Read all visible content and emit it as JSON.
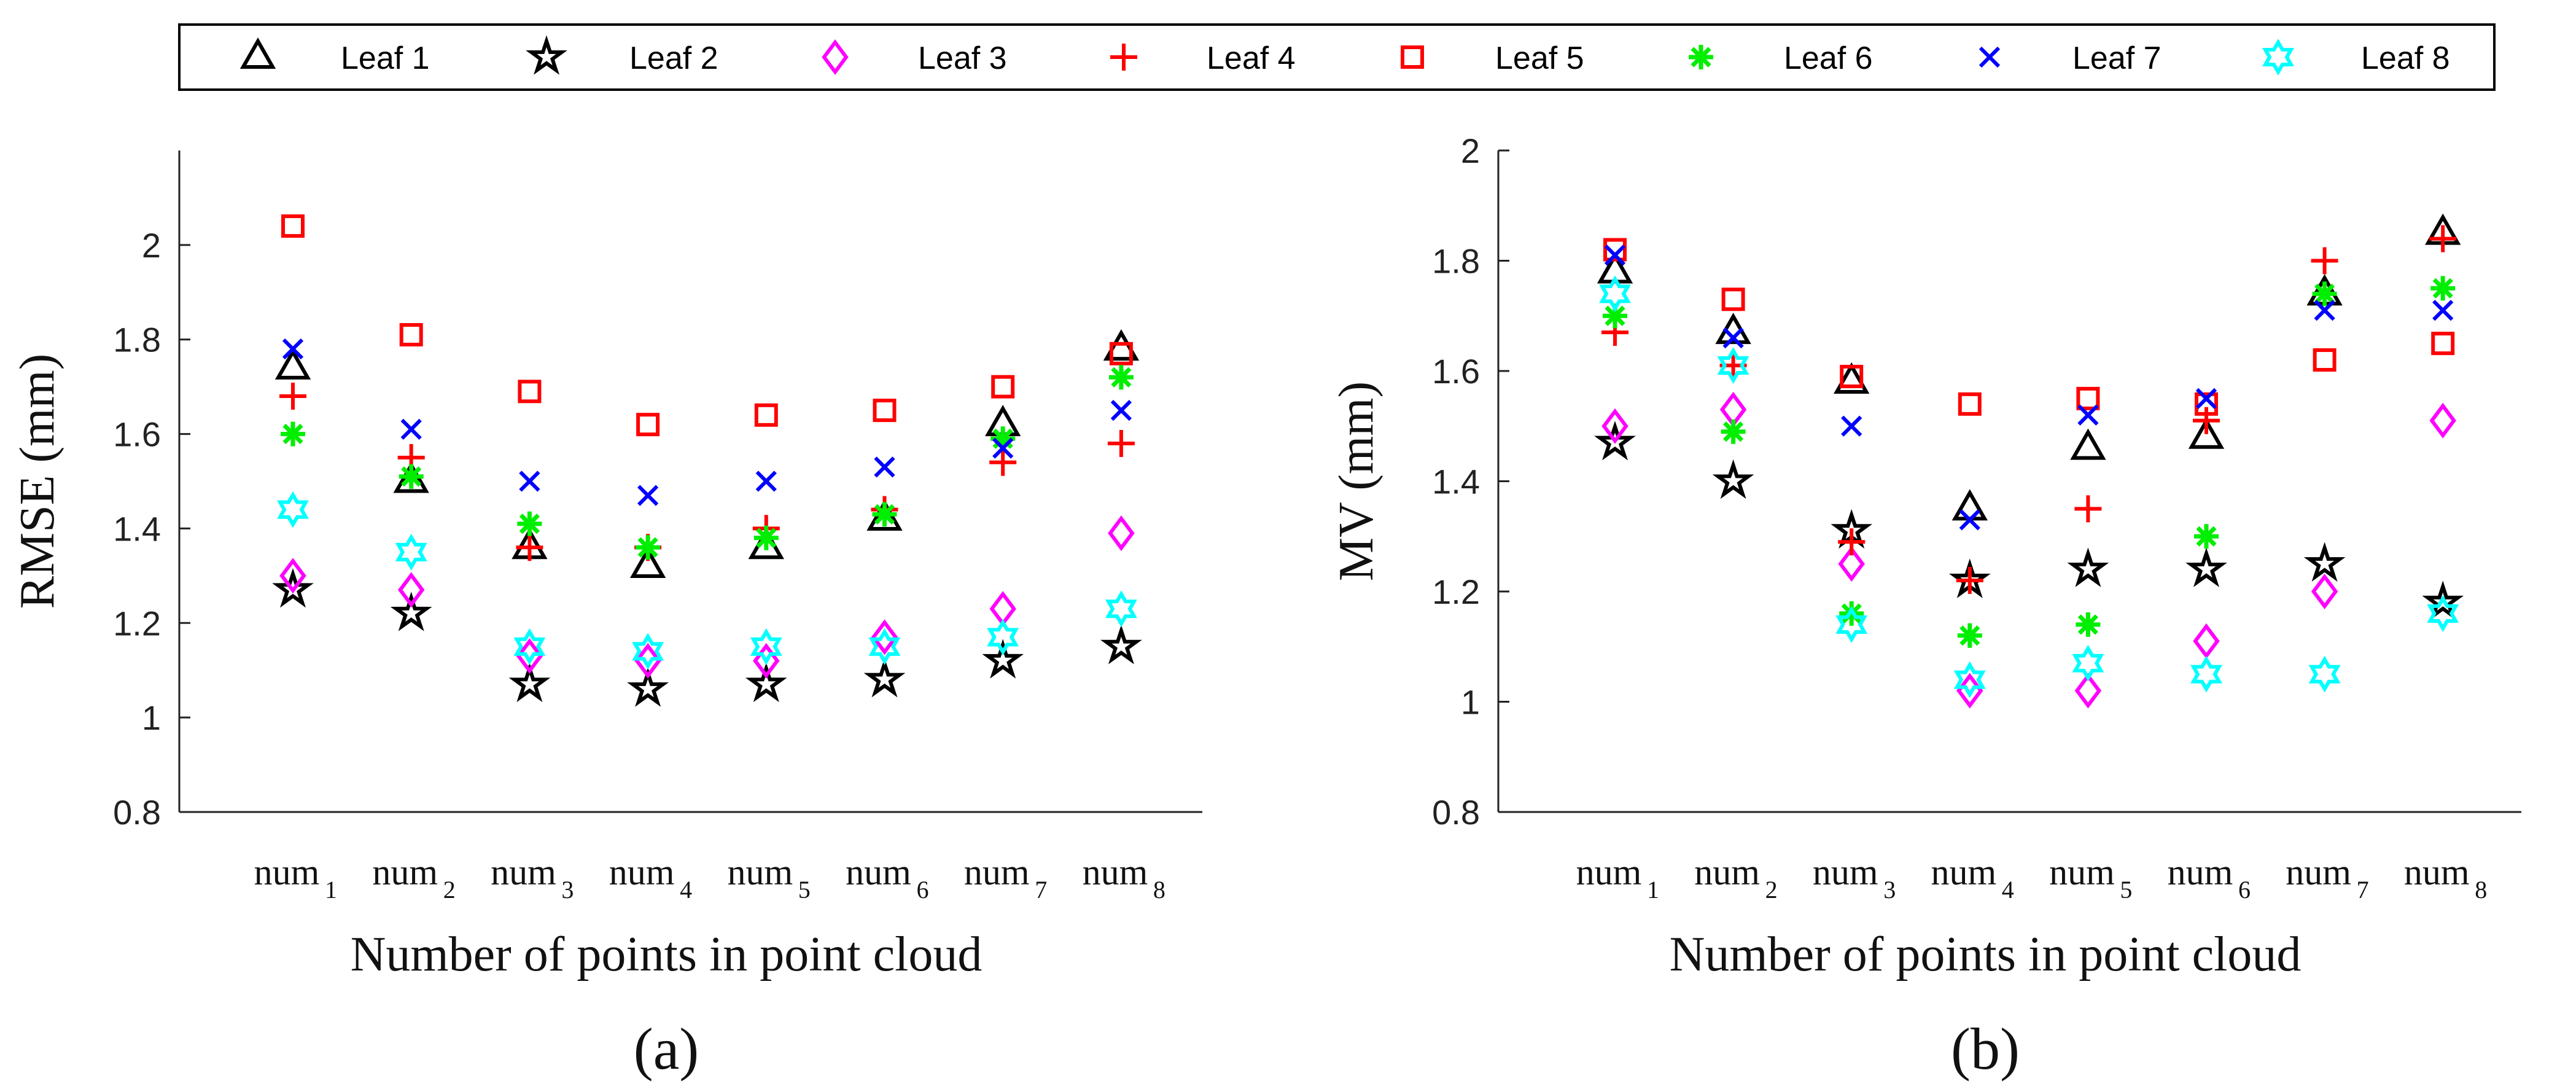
{
  "legend": [
    {
      "name": "Leaf 1",
      "marker": "triangle",
      "color": "#000000"
    },
    {
      "name": "Leaf 2",
      "marker": "pentagram",
      "color": "#000000"
    },
    {
      "name": "Leaf 3",
      "marker": "diamond",
      "color": "#ff00ff"
    },
    {
      "name": "Leaf 4",
      "marker": "plus",
      "color": "#ff0000"
    },
    {
      "name": "Leaf 5",
      "marker": "square",
      "color": "#ff0000"
    },
    {
      "name": "Leaf 6",
      "marker": "asterisk",
      "color": "#00ee00"
    },
    {
      "name": "Leaf 7",
      "marker": "x",
      "color": "#0000ff"
    },
    {
      "name": "Leaf 8",
      "marker": "hexagram",
      "color": "#00ffff"
    }
  ],
  "chart_data": [
    {
      "type": "scatter",
      "panel": "(a)",
      "title": "",
      "xlabel": "Number of points in point cloud",
      "ylabel": "RMSE (mm)",
      "ylim": [
        0.8,
        2.2
      ],
      "yticks": [
        "0.8",
        "1",
        "1.2",
        "1.4",
        "1.6",
        "1.8",
        "2"
      ],
      "categories": [
        {
          "base": "num",
          "sub": "1"
        },
        {
          "base": "num",
          "sub": "2"
        },
        {
          "base": "num",
          "sub": "3"
        },
        {
          "base": "num",
          "sub": "4"
        },
        {
          "base": "num",
          "sub": "5"
        },
        {
          "base": "num",
          "sub": "6"
        },
        {
          "base": "num",
          "sub": "7"
        },
        {
          "base": "num",
          "sub": "8"
        }
      ],
      "series": [
        {
          "name": "Leaf 1",
          "values": [
            1.74,
            1.5,
            1.36,
            1.32,
            1.36,
            1.42,
            1.62,
            1.78
          ]
        },
        {
          "name": "Leaf 2",
          "values": [
            1.27,
            1.22,
            1.07,
            1.06,
            1.07,
            1.08,
            1.12,
            1.15
          ]
        },
        {
          "name": "Leaf 3",
          "values": [
            1.3,
            1.27,
            1.13,
            1.12,
            1.12,
            1.17,
            1.23,
            1.39
          ]
        },
        {
          "name": "Leaf 4",
          "values": [
            1.68,
            1.55,
            1.36,
            1.36,
            1.4,
            1.44,
            1.54,
            1.58
          ]
        },
        {
          "name": "Leaf 5",
          "values": [
            2.04,
            1.81,
            1.69,
            1.62,
            1.64,
            1.65,
            1.7,
            1.77
          ]
        },
        {
          "name": "Leaf 6",
          "values": [
            1.6,
            1.51,
            1.41,
            1.36,
            1.38,
            1.43,
            1.59,
            1.72
          ]
        },
        {
          "name": "Leaf 7",
          "values": [
            1.78,
            1.61,
            1.5,
            1.47,
            1.5,
            1.53,
            1.57,
            1.65
          ]
        },
        {
          "name": "Leaf 8",
          "values": [
            1.44,
            1.35,
            1.15,
            1.14,
            1.15,
            1.15,
            1.17,
            1.23
          ]
        }
      ]
    },
    {
      "type": "scatter",
      "panel": "(b)",
      "title": "",
      "xlabel": "Number of points in point cloud",
      "ylabel": "MV (mm)",
      "ylim": [
        0.8,
        2.0
      ],
      "yticks": [
        "0.8",
        "1",
        "1.2",
        "1.4",
        "1.6",
        "1.8",
        "2"
      ],
      "categories": [
        {
          "base": "num",
          "sub": "1"
        },
        {
          "base": "num",
          "sub": "2"
        },
        {
          "base": "num",
          "sub": "3"
        },
        {
          "base": "num",
          "sub": "4"
        },
        {
          "base": "num",
          "sub": "5"
        },
        {
          "base": "num",
          "sub": "6"
        },
        {
          "base": "num",
          "sub": "7"
        },
        {
          "base": "num",
          "sub": "8"
        }
      ],
      "series": [
        {
          "name": "Leaf 1",
          "values": [
            1.78,
            1.67,
            1.58,
            1.35,
            1.46,
            1.48,
            1.74,
            1.85
          ]
        },
        {
          "name": "Leaf 2",
          "values": [
            1.47,
            1.4,
            1.31,
            1.22,
            1.24,
            1.24,
            1.25,
            1.18
          ]
        },
        {
          "name": "Leaf 3",
          "values": [
            1.5,
            1.53,
            1.25,
            1.02,
            1.02,
            1.11,
            1.2,
            1.51
          ]
        },
        {
          "name": "Leaf 4",
          "values": [
            1.67,
            1.61,
            1.29,
            1.22,
            1.35,
            1.51,
            1.8,
            1.84
          ]
        },
        {
          "name": "Leaf 5",
          "values": [
            1.82,
            1.73,
            1.59,
            1.54,
            1.55,
            1.54,
            1.62,
            1.65
          ]
        },
        {
          "name": "Leaf 6",
          "values": [
            1.7,
            1.49,
            1.16,
            1.12,
            1.14,
            1.3,
            1.74,
            1.75
          ]
        },
        {
          "name": "Leaf 7",
          "values": [
            1.81,
            1.66,
            1.5,
            1.33,
            1.52,
            1.55,
            1.71,
            1.71
          ]
        },
        {
          "name": "Leaf 8",
          "values": [
            1.74,
            1.61,
            1.14,
            1.04,
            1.07,
            1.05,
            1.05,
            1.16
          ]
        }
      ]
    }
  ]
}
